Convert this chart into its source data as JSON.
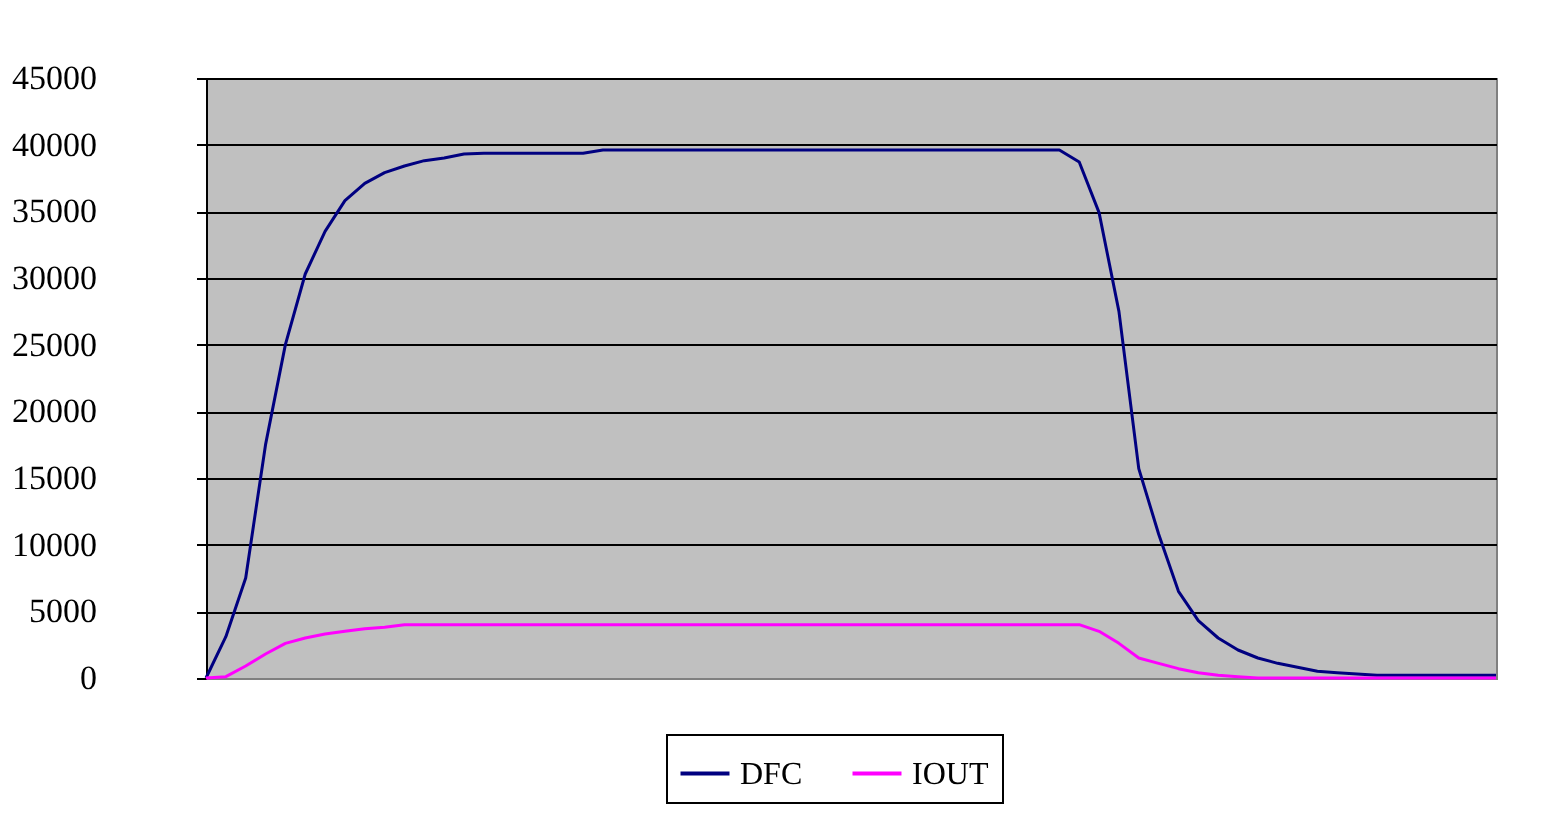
{
  "chart_data": {
    "type": "line",
    "categories": [
      null,
      null,
      null,
      null,
      null,
      null,
      null,
      null,
      null,
      null,
      null,
      null,
      null,
      null,
      null,
      null,
      null,
      null,
      null,
      null,
      null,
      null,
      null,
      null,
      null,
      null,
      null,
      null,
      null,
      null,
      null,
      null,
      null,
      null,
      null,
      null,
      null,
      null,
      null,
      null,
      null,
      null,
      null,
      null,
      null,
      null,
      null,
      null,
      null,
      null,
      null,
      null,
      null,
      null,
      null,
      null,
      null,
      null,
      null,
      null,
      null,
      null,
      null,
      null,
      null,
      null
    ],
    "series": [
      {
        "name": "DFC",
        "color": "#000080",
        "values": [
          0,
          3100,
          7500,
          17500,
          25000,
          30300,
          33500,
          35800,
          37100,
          37900,
          38400,
          38800,
          39000,
          39300,
          39350,
          39350,
          39350,
          39350,
          39350,
          39350,
          39600,
          39600,
          39600,
          39600,
          39600,
          39600,
          39600,
          39600,
          39600,
          39600,
          39600,
          39600,
          39600,
          39600,
          39600,
          39600,
          39600,
          39600,
          39600,
          39600,
          39600,
          39600,
          39600,
          39600,
          38700,
          34900,
          27500,
          15700,
          10800,
          6500,
          4300,
          3000,
          2100,
          1500,
          1100,
          800,
          500,
          400,
          300,
          200,
          200,
          200,
          200,
          200,
          200,
          200
        ]
      },
      {
        "name": "IOUT",
        "color": "#ff00ff",
        "values": [
          0,
          100,
          900,
          1800,
          2600,
          3000,
          3300,
          3500,
          3700,
          3800,
          4000,
          4000,
          4000,
          4000,
          4000,
          4000,
          4000,
          4000,
          4000,
          4000,
          4000,
          4000,
          4000,
          4000,
          4000,
          4000,
          4000,
          4000,
          4000,
          4000,
          4000,
          4000,
          4000,
          4000,
          4000,
          4000,
          4000,
          4000,
          4000,
          4000,
          4000,
          4000,
          4000,
          4000,
          4000,
          3500,
          2600,
          1500,
          1100,
          700,
          400,
          200,
          100,
          0,
          0,
          0,
          0,
          0,
          0,
          0,
          0,
          0,
          0,
          0,
          0,
          0
        ]
      }
    ],
    "ylim": [
      0,
      45000
    ],
    "yticks": [
      0,
      5000,
      10000,
      15000,
      20000,
      25000,
      30000,
      35000,
      40000,
      45000
    ],
    "grid": "y",
    "legend": "bottom",
    "tick_labels": "y",
    "marker": "none",
    "line_style": "solid"
  }
}
